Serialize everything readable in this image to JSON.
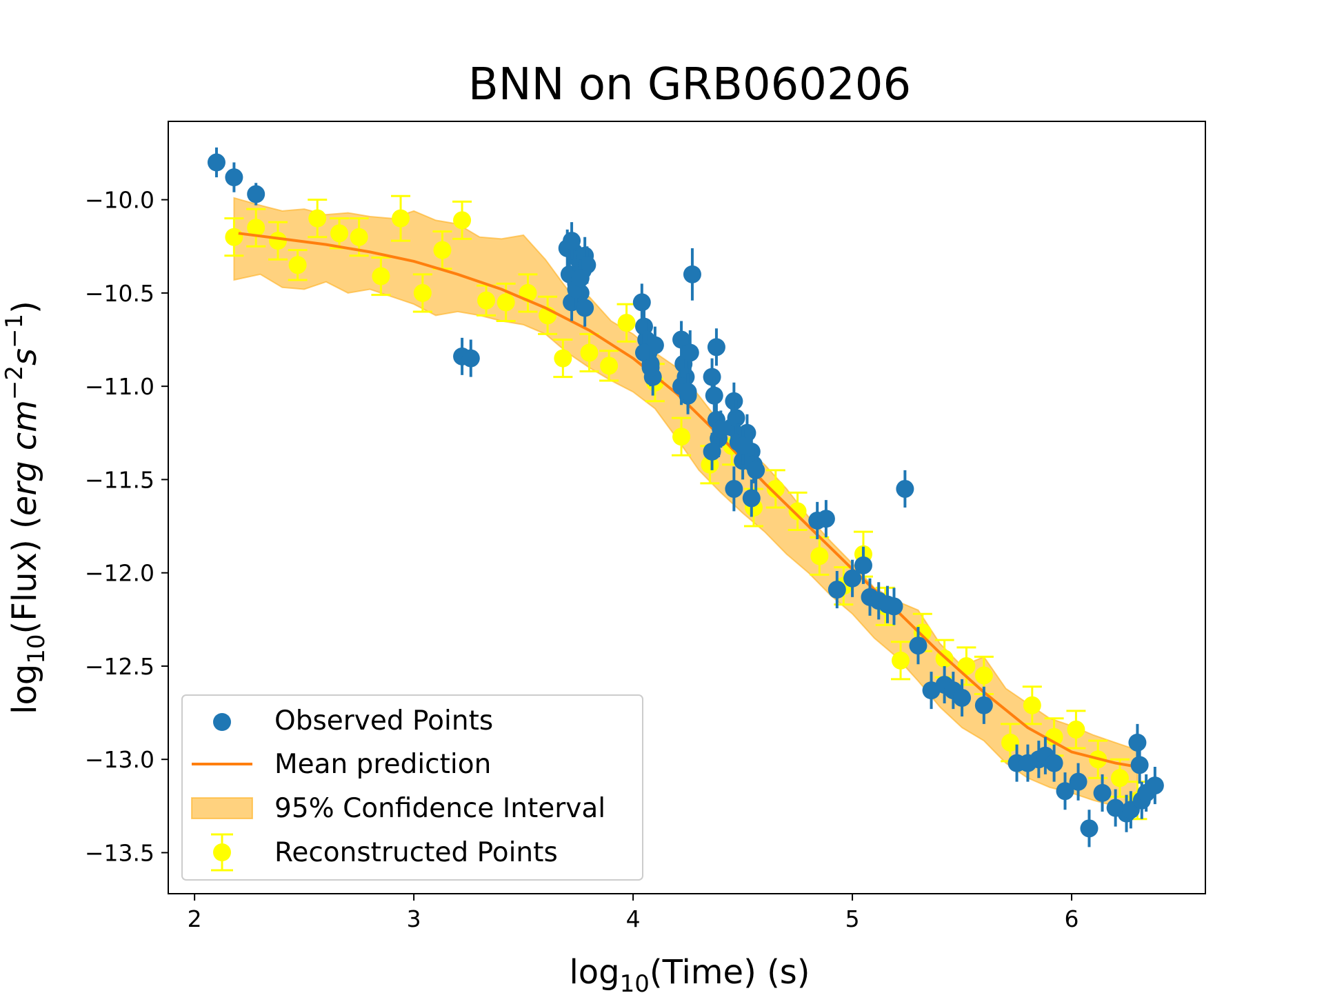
{
  "chart_data": {
    "type": "scatter",
    "title": "BNN on GRB060206",
    "xlabel": "log10(Time) (s)",
    "ylabel": "log10(Flux) (erg cm^-2 s^-1)",
    "xlim": [
      1.88,
      6.61
    ],
    "ylim": [
      -13.72,
      -9.58
    ],
    "xticks": [
      2,
      3,
      4,
      5,
      6
    ],
    "xtick_labels": [
      "2",
      "3",
      "4",
      "5",
      "6"
    ],
    "yticks": [
      -10.0,
      -10.5,
      -11.0,
      -11.5,
      -12.0,
      -12.5,
      -13.0,
      -13.5
    ],
    "ytick_labels": [
      "−10.0",
      "−10.5",
      "−11.0",
      "−11.5",
      "−12.0",
      "−12.5",
      "−13.0",
      "−13.5"
    ],
    "grid": false,
    "legend_position": "lower-left",
    "colors": {
      "observed": "#1f77b4",
      "mean": "#ff7f0e",
      "band_fill": "#ffa500",
      "reconstructed": "#ffff00"
    },
    "legend": [
      {
        "key": "observed",
        "label": "Observed Points"
      },
      {
        "key": "mean",
        "label": "Mean prediction"
      },
      {
        "key": "band",
        "label": "95% Confidence Interval"
      },
      {
        "key": "reconstructed",
        "label": "Reconstructed Points"
      }
    ],
    "mean_prediction": {
      "x": [
        2.2,
        2.4,
        2.6,
        2.8,
        3.0,
        3.2,
        3.4,
        3.6,
        3.8,
        4.0,
        4.2,
        4.4,
        4.6,
        4.8,
        5.0,
        5.2,
        5.4,
        5.6,
        5.8,
        6.0,
        6.2,
        6.3
      ],
      "y": [
        -10.18,
        -10.21,
        -10.24,
        -10.28,
        -10.33,
        -10.4,
        -10.48,
        -10.58,
        -10.7,
        -10.85,
        -11.04,
        -11.27,
        -11.52,
        -11.75,
        -11.98,
        -12.2,
        -12.43,
        -12.64,
        -12.83,
        -12.96,
        -13.02,
        -13.04
      ]
    },
    "confidence_band": {
      "x": [
        2.18,
        2.3,
        2.4,
        2.5,
        2.6,
        2.7,
        2.8,
        2.9,
        3.0,
        3.1,
        3.2,
        3.3,
        3.4,
        3.5,
        3.6,
        3.7,
        3.8,
        3.9,
        4.0,
        4.1,
        4.2,
        4.3,
        4.4,
        4.5,
        4.6,
        4.7,
        4.8,
        4.9,
        5.0,
        5.1,
        5.2,
        5.3,
        5.4,
        5.5,
        5.6,
        5.7,
        5.8,
        5.9,
        6.0,
        6.1,
        6.2,
        6.3
      ],
      "upper": [
        -9.99,
        -10.03,
        -10.06,
        -10.05,
        -10.08,
        -10.07,
        -10.09,
        -10.1,
        -10.06,
        -10.11,
        -10.13,
        -10.2,
        -10.21,
        -10.19,
        -10.32,
        -10.48,
        -10.52,
        -10.65,
        -10.72,
        -10.82,
        -10.9,
        -11.05,
        -11.2,
        -11.32,
        -11.42,
        -11.55,
        -11.7,
        -11.83,
        -11.95,
        -12.08,
        -12.15,
        -12.2,
        -12.38,
        -12.5,
        -12.45,
        -12.62,
        -12.7,
        -12.78,
        -12.82,
        -12.87,
        -12.91,
        -12.95
      ],
      "lower": [
        -10.43,
        -10.4,
        -10.47,
        -10.48,
        -10.44,
        -10.5,
        -10.48,
        -10.52,
        -10.56,
        -10.62,
        -10.6,
        -10.62,
        -10.65,
        -10.67,
        -10.72,
        -10.82,
        -10.9,
        -10.97,
        -11.03,
        -11.12,
        -11.28,
        -11.45,
        -11.57,
        -11.68,
        -11.78,
        -11.9,
        -12.0,
        -12.12,
        -12.22,
        -12.35,
        -12.45,
        -12.58,
        -12.72,
        -12.83,
        -12.9,
        -13.02,
        -13.1,
        -13.15,
        -13.18,
        -13.22,
        -13.25,
        -13.27
      ]
    },
    "reconstructed_points": {
      "x": [
        2.18,
        2.28,
        2.38,
        2.47,
        2.56,
        2.66,
        2.75,
        2.85,
        2.94,
        3.04,
        3.13,
        3.22,
        3.33,
        3.42,
        3.52,
        3.61,
        3.68,
        3.8,
        3.89,
        3.97,
        4.1,
        4.22,
        4.35,
        4.45,
        4.55,
        4.65,
        4.75,
        4.85,
        4.96,
        5.05,
        5.15,
        5.22,
        5.32,
        5.42,
        5.52,
        5.6,
        5.72,
        5.82,
        5.92,
        6.02,
        6.12,
        6.22,
        6.3
      ],
      "y": [
        -10.2,
        -10.15,
        -10.22,
        -10.35,
        -10.1,
        -10.18,
        -10.2,
        -10.41,
        -10.1,
        -10.5,
        -10.27,
        -10.11,
        -10.54,
        -10.55,
        -10.5,
        -10.62,
        -10.85,
        -10.82,
        -10.89,
        -10.66,
        -10.98,
        -11.27,
        -11.42,
        -11.32,
        -11.65,
        -11.55,
        -11.67,
        -11.91,
        -12.07,
        -11.9,
        -12.18,
        -12.47,
        -12.32,
        -12.46,
        -12.5,
        -12.55,
        -12.91,
        -12.71,
        -12.88,
        -12.84,
        -13.0,
        -13.1,
        -13.22
      ],
      "yerr": [
        0.1,
        0.1,
        0.1,
        0.08,
        0.1,
        0.08,
        0.1,
        0.1,
        0.12,
        0.1,
        0.1,
        0.1,
        0.08,
        0.1,
        0.1,
        0.1,
        0.1,
        0.1,
        0.08,
        0.1,
        0.1,
        0.1,
        0.1,
        0.1,
        0.1,
        0.1,
        0.1,
        0.1,
        0.1,
        0.12,
        0.1,
        0.1,
        0.1,
        0.1,
        0.1,
        0.1,
        0.1,
        0.1,
        0.1,
        0.1,
        0.1,
        0.1,
        0.1
      ]
    },
    "observed_points": {
      "x": [
        2.1,
        2.18,
        2.28,
        3.22,
        3.26,
        3.7,
        3.71,
        3.72,
        3.73,
        3.74,
        3.75,
        3.76,
        3.77,
        3.78,
        3.79,
        3.72,
        3.74,
        3.76,
        3.78,
        4.04,
        4.05,
        4.06,
        4.07,
        4.08,
        4.09,
        4.1,
        4.05,
        4.08,
        4.22,
        4.23,
        4.24,
        4.25,
        4.26,
        4.27,
        4.22,
        4.25,
        4.36,
        4.37,
        4.38,
        4.39,
        4.4,
        4.36,
        4.38,
        4.45,
        4.46,
        4.47,
        4.48,
        4.5,
        4.52,
        4.54,
        4.55,
        4.56,
        4.46,
        4.5,
        4.54,
        4.84,
        4.88,
        4.93,
        5.0,
        5.05,
        5.08,
        5.12,
        5.16,
        5.19,
        5.24,
        5.3,
        5.36,
        5.42,
        5.46,
        5.5,
        5.6,
        5.75,
        5.8,
        5.85,
        5.88,
        5.92,
        5.97,
        6.03,
        6.08,
        6.14,
        6.2,
        6.25,
        6.27,
        6.3,
        6.31,
        6.32,
        6.34,
        6.38
      ],
      "y": [
        -9.8,
        -9.88,
        -9.97,
        -10.84,
        -10.85,
        -10.26,
        -10.4,
        -10.55,
        -10.28,
        -10.45,
        -10.32,
        -10.5,
        -10.38,
        -10.3,
        -10.35,
        -10.22,
        -10.48,
        -10.42,
        -10.58,
        -10.55,
        -10.68,
        -10.75,
        -10.82,
        -10.88,
        -10.95,
        -10.78,
        -10.82,
        -10.9,
        -10.75,
        -10.88,
        -10.95,
        -11.05,
        -10.82,
        -10.4,
        -11.0,
        -11.03,
        -10.95,
        -11.05,
        -11.18,
        -11.28,
        -11.23,
        -11.35,
        -10.79,
        -11.22,
        -11.08,
        -11.17,
        -11.3,
        -11.4,
        -11.25,
        -11.35,
        -11.42,
        -11.45,
        -11.55,
        -11.32,
        -11.6,
        -11.72,
        -11.71,
        -12.09,
        -12.03,
        -11.96,
        -12.13,
        -12.15,
        -12.17,
        -12.18,
        -11.55,
        -12.39,
        -12.63,
        -12.6,
        -12.63,
        -12.67,
        -12.71,
        -13.02,
        -13.02,
        -13.0,
        -12.98,
        -13.02,
        -13.17,
        -13.12,
        -13.37,
        -13.18,
        -13.26,
        -13.29,
        -13.27,
        -12.91,
        -13.03,
        -13.22,
        -13.18,
        -13.14
      ],
      "yerr": [
        0.08,
        0.08,
        0.06,
        0.1,
        0.1,
        0.1,
        0.12,
        0.1,
        0.1,
        0.1,
        0.1,
        0.1,
        0.1,
        0.1,
        0.1,
        0.1,
        0.1,
        0.1,
        0.1,
        0.1,
        0.1,
        0.1,
        0.1,
        0.1,
        0.1,
        0.1,
        0.1,
        0.1,
        0.1,
        0.1,
        0.1,
        0.1,
        0.12,
        0.14,
        0.1,
        0.1,
        0.1,
        0.1,
        0.1,
        0.1,
        0.1,
        0.1,
        0.1,
        0.1,
        0.1,
        0.1,
        0.1,
        0.1,
        0.1,
        0.1,
        0.1,
        0.12,
        0.12,
        0.1,
        0.1,
        0.1,
        0.1,
        0.1,
        0.1,
        0.1,
        0.1,
        0.1,
        0.1,
        0.1,
        0.1,
        0.1,
        0.1,
        0.1,
        0.1,
        0.1,
        0.1,
        0.1,
        0.1,
        0.1,
        0.1,
        0.1,
        0.1,
        0.1,
        0.1,
        0.1,
        0.1,
        0.1,
        0.1,
        0.1,
        0.1,
        0.1,
        0.1,
        0.1
      ]
    }
  }
}
